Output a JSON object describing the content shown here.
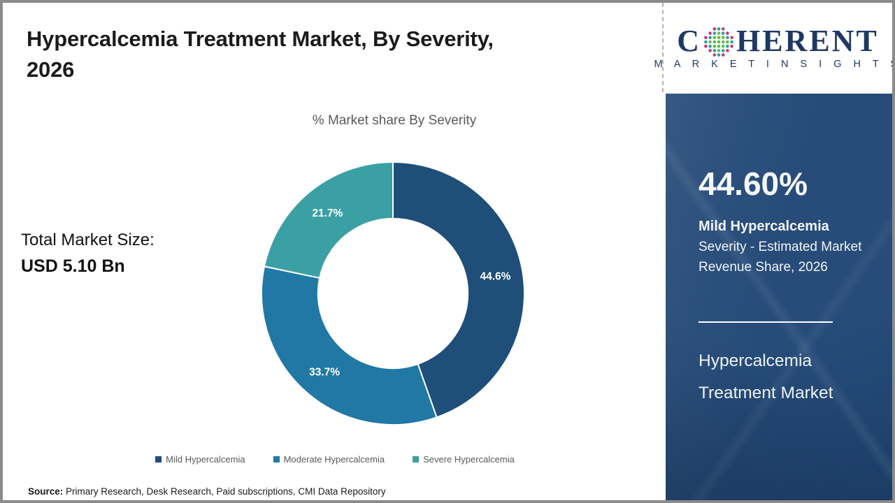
{
  "header": {
    "title_line1": "Hypercalcemia Treatment Market, By Severity,",
    "title_line2": "2026"
  },
  "total_market": {
    "label": "Total Market Size:",
    "value": "USD 5.10 Bn"
  },
  "chart_data": {
    "type": "pie",
    "subtype": "donut",
    "title": "% Market share By Severity",
    "categories": [
      "Mild Hypercalcemia",
      "Moderate Hypercalcemia",
      "Severe Hypercalcemia"
    ],
    "values": [
      44.6,
      33.7,
      21.7
    ],
    "labels": [
      "44.6%",
      "33.7%",
      "21.7%"
    ],
    "colors": [
      "#1f4e79",
      "#2178a5",
      "#3ba0a4"
    ],
    "label_color": "#ffffff",
    "start_angle_deg": 0,
    "direction": "clockwise",
    "donut_hole_ratio": 0.57,
    "legend_position": "bottom",
    "legend_text_color": "#595959"
  },
  "logo": {
    "word_start": "C",
    "word_end": "HERENT",
    "subtitle": "M A R K E T   I N S I G H T S",
    "text_color": "#1f3864",
    "globe_inner_color": "#63bd4a",
    "globe_mid_color": "#2e9da6",
    "globe_outer_color": "#c23b72"
  },
  "sidebar": {
    "background_color": "#1e4574",
    "stat_value": "44.60%",
    "stat_label_bold": "Mild Hypercalcemia",
    "stat_label_rest": " Severity - Estimated Market Revenue Share, 2026",
    "footer_line1": "Hypercalcemia",
    "footer_line2": "Treatment Market"
  },
  "footer": {
    "source_label": "Source:",
    "source_text": " Primary Research, Desk Research, Paid subscriptions, CMI Data Repository"
  }
}
